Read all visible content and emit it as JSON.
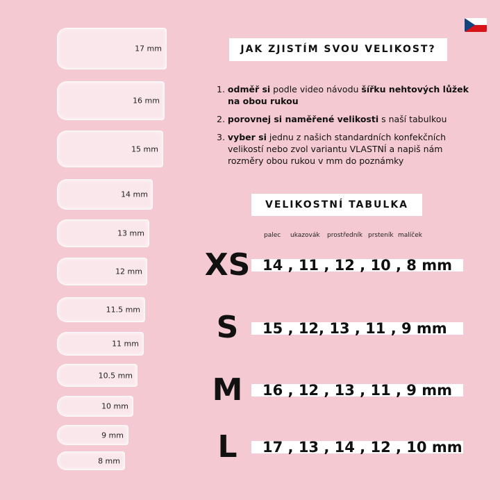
{
  "flag": "czech-flag",
  "nails": [
    "17 mm",
    "16 mm",
    "15 mm",
    "14 mm",
    "13 mm",
    "12 mm",
    "11.5 mm",
    "11 mm",
    "10.5 mm",
    "10 mm",
    "9 mm",
    "8 mm"
  ],
  "title": "JAK ZJISTÍM SVOU VELIKOST?",
  "steps": [
    {
      "n": "1.",
      "b1": "odměř si",
      "t1": " podle video návodu ",
      "b2": "šířku nehtových lůžek na obou rukou",
      "t2": ""
    },
    {
      "n": "2.",
      "b1": "porovnej si naměřené velikosti",
      "t1": " s naší tabulkou",
      "b2": "",
      "t2": ""
    },
    {
      "n": "3.",
      "b1": "vyber si",
      "t1": " jednu z našich standardních konfekčních velikostí nebo zvol variantu VLASTNÍ a napiš nám rozměry obou rukou v mm do poznámky",
      "b2": "",
      "t2": ""
    }
  ],
  "table_title": "VELIKOSTNÍ TABULKA",
  "fingers": [
    "palec",
    "ukazovák",
    "prostředník",
    "prsteník",
    "malíček"
  ],
  "rows": [
    {
      "size": "XS",
      "values": "14 , 11 , 12 , 10 , 8 mm"
    },
    {
      "size": "S",
      "values": "15 , 12, 13 , 11 , 9 mm"
    },
    {
      "size": "M",
      "values": "16 , 12 , 13 , 11 , 9 mm"
    },
    {
      "size": "L",
      "values": "17 , 13 , 14 , 12 , 10 mm"
    }
  ]
}
